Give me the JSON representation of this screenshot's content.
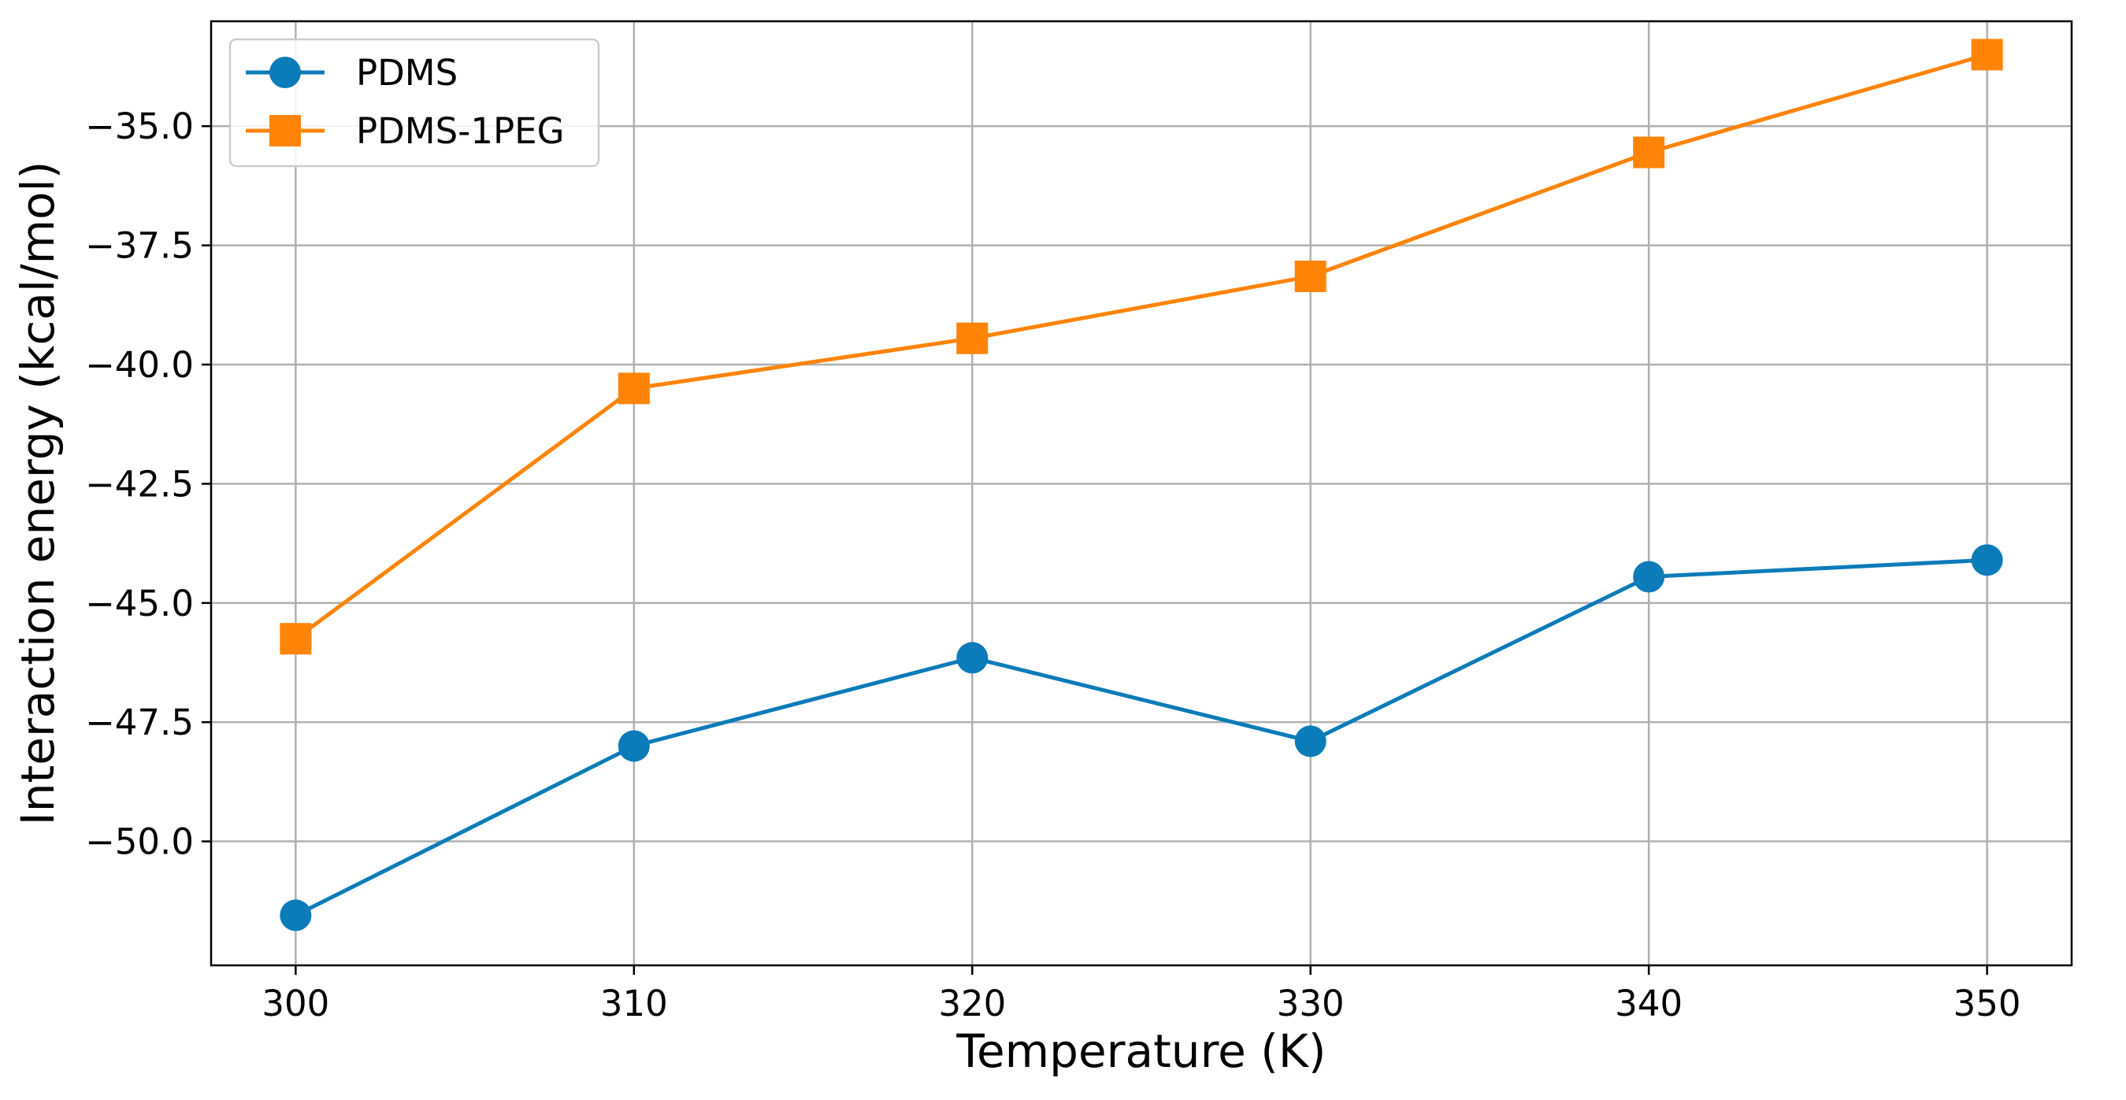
{
  "chart_data": {
    "type": "line",
    "title": "",
    "xlabel": "Temperature (K)",
    "ylabel": "Interaction energy (kcal/mol)",
    "x": [
      300,
      310,
      320,
      330,
      340,
      350
    ],
    "xlim": [
      297.5,
      352.5
    ],
    "ylim": [
      -52.6,
      -32.8
    ],
    "xticks": [
      300,
      310,
      320,
      330,
      340,
      350
    ],
    "xtick_labels": [
      "300",
      "310",
      "320",
      "330",
      "340",
      "350"
    ],
    "yticks": [
      -50.0,
      -47.5,
      -45.0,
      -42.5,
      -40.0,
      -37.5,
      -35.0
    ],
    "ytick_labels": [
      "−50.0",
      "−47.5",
      "−45.0",
      "−42.5",
      "−40.0",
      "−37.5",
      "−35.0"
    ],
    "grid": true,
    "legend_position": "top-left",
    "series": [
      {
        "name": "PDMS",
        "color": "#0C7BB9",
        "marker": "circle",
        "values": [
          -51.55,
          -48.0,
          -46.15,
          -47.9,
          -44.45,
          -44.1
        ]
      },
      {
        "name": "PDMS-1PEG",
        "color": "#FF8408",
        "marker": "square",
        "values": [
          -45.75,
          -40.5,
          -39.45,
          -38.15,
          -35.55,
          -33.5
        ]
      }
    ]
  }
}
